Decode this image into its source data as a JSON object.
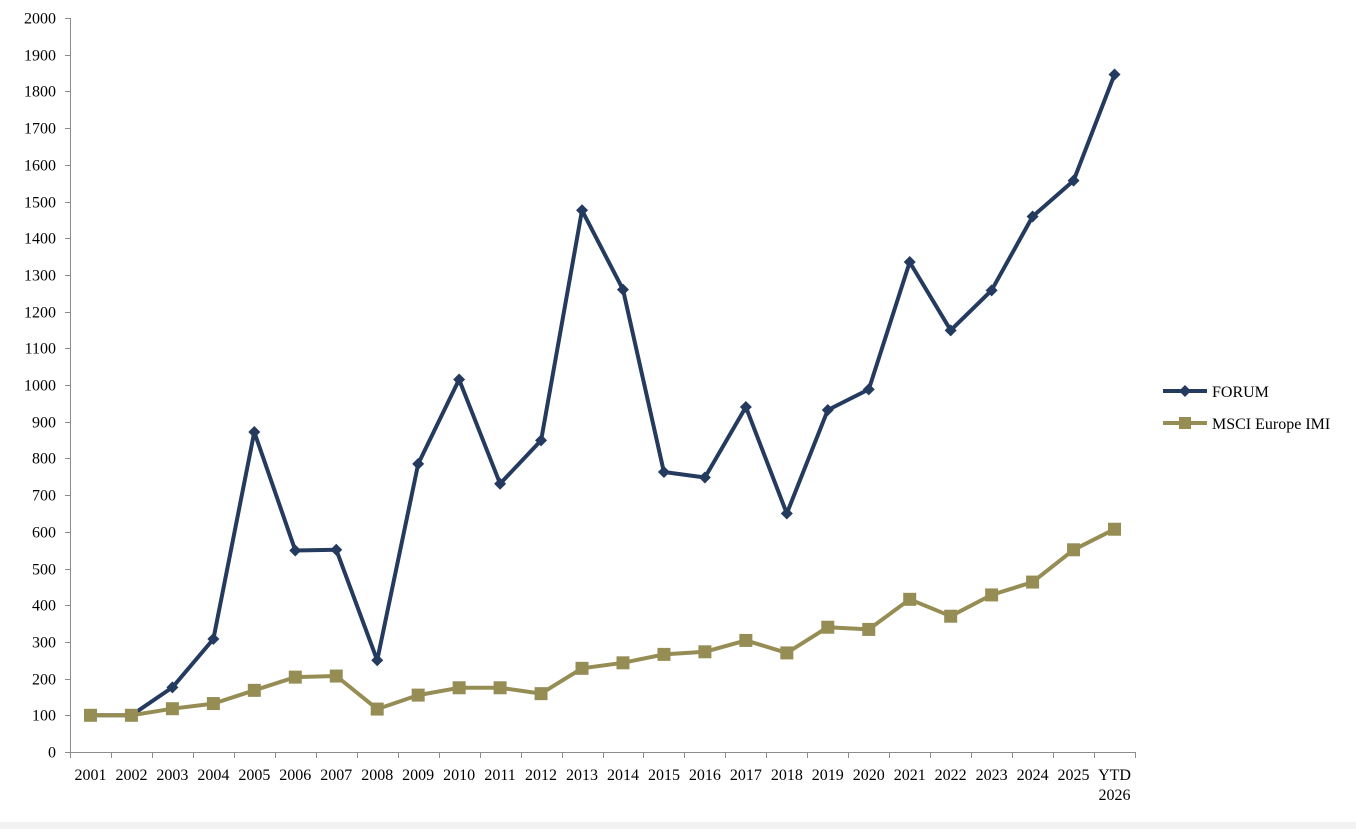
{
  "chart_data": {
    "type": "line",
    "title": "",
    "xlabel": "",
    "ylabel": "",
    "categories": [
      "2001",
      "2002",
      "2003",
      "2004",
      "2005",
      "2006",
      "2007",
      "2008",
      "2009",
      "2010",
      "2011",
      "2012",
      "2013",
      "2014",
      "2015",
      "2016",
      "2017",
      "2018",
      "2019",
      "2020",
      "2021",
      "2022",
      "2023",
      "2024",
      "2025",
      "YTD 2026"
    ],
    "ylim": [
      0,
      2000
    ],
    "yticks": [
      0,
      100,
      200,
      300,
      400,
      500,
      600,
      700,
      800,
      900,
      1000,
      1100,
      1200,
      1300,
      1400,
      1500,
      1600,
      1700,
      1800,
      1900,
      2000
    ],
    "grid": false,
    "legend_position": "right",
    "series": [
      {
        "name": "FORUM",
        "color": "#243a5e",
        "marker": "diamond",
        "values": [
          100,
          100,
          176,
          308,
          872,
          549,
          551,
          250,
          785,
          1015,
          731,
          849,
          1476,
          1260,
          763,
          748,
          940,
          650,
          932,
          988,
          1335,
          1149,
          1258,
          1459,
          1557,
          1846
        ]
      },
      {
        "name": "MSCI Europe IMI",
        "color": "#968d55",
        "marker": "square",
        "values": [
          100,
          100,
          118,
          132,
          168,
          204,
          207,
          117,
          155,
          175,
          175,
          159,
          228,
          243,
          266,
          273,
          304,
          270,
          340,
          334,
          416,
          370,
          428,
          463,
          551,
          607
        ]
      }
    ]
  }
}
